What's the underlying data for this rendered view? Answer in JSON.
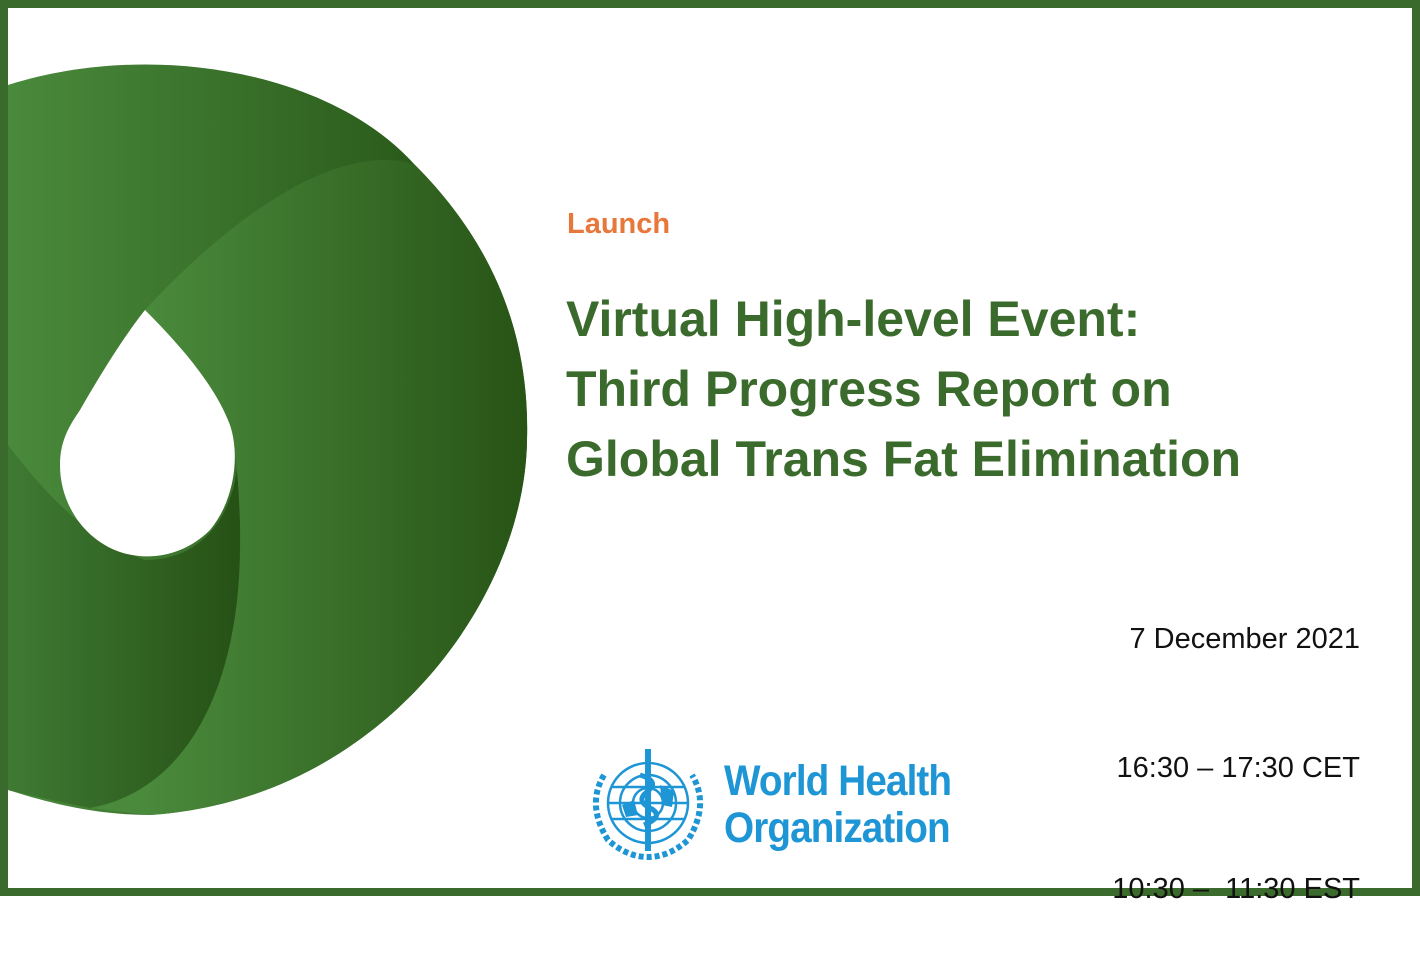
{
  "slide": {
    "kicker": "Launch",
    "title_lines": [
      "Virtual High-level Event:",
      "Third Progress Report on",
      "Global Trans Fat Elimination"
    ],
    "date": "7 December 2021",
    "time_cet": "16:30 – 17:30 CET",
    "time_est": "10:30 –  11:30 EST",
    "logo": {
      "line1": "World Health",
      "line2": "Organization",
      "icon": "who-emblem-icon"
    }
  },
  "colors": {
    "frame": "#3b6b2c",
    "kicker": "#e8773c",
    "title": "#3b6b2c",
    "logo": "#1e95d4"
  }
}
